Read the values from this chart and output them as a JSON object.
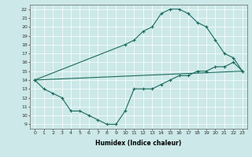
{
  "xlabel": "Humidex (Indice chaleur)",
  "ylabel": "",
  "xlim": [
    -0.5,
    23.5
  ],
  "ylim": [
    8.5,
    22.5
  ],
  "yticks": [
    9,
    10,
    11,
    12,
    13,
    14,
    15,
    16,
    17,
    18,
    19,
    20,
    21,
    22
  ],
  "xticks": [
    0,
    1,
    2,
    3,
    4,
    5,
    6,
    7,
    8,
    9,
    10,
    11,
    12,
    13,
    14,
    15,
    16,
    17,
    18,
    19,
    20,
    21,
    22,
    23
  ],
  "bg_color": "#cce8e8",
  "line_color": "#1a6b5e",
  "line1_x": [
    0,
    1,
    2,
    3,
    4,
    5,
    6,
    7,
    8,
    9,
    10,
    11,
    12,
    13,
    14,
    15,
    16,
    17,
    18,
    19,
    20,
    21,
    22,
    23
  ],
  "line1_y": [
    14,
    13,
    12.5,
    12,
    10.5,
    10.5,
    10,
    9.5,
    9,
    9,
    10.5,
    13,
    13,
    13,
    13.5,
    14,
    14.5,
    14.5,
    15,
    15,
    15.5,
    15.5,
    16,
    15
  ],
  "line2_x": [
    0,
    23
  ],
  "line2_y": [
    14,
    15
  ],
  "line3_x": [
    0,
    10,
    11,
    12,
    13,
    14,
    15,
    16,
    17,
    18,
    19,
    20,
    21,
    22,
    23
  ],
  "line3_y": [
    14,
    18,
    18.5,
    19.5,
    20,
    21.5,
    22,
    22,
    21.5,
    20.5,
    20,
    18.5,
    17,
    16.5,
    15
  ]
}
